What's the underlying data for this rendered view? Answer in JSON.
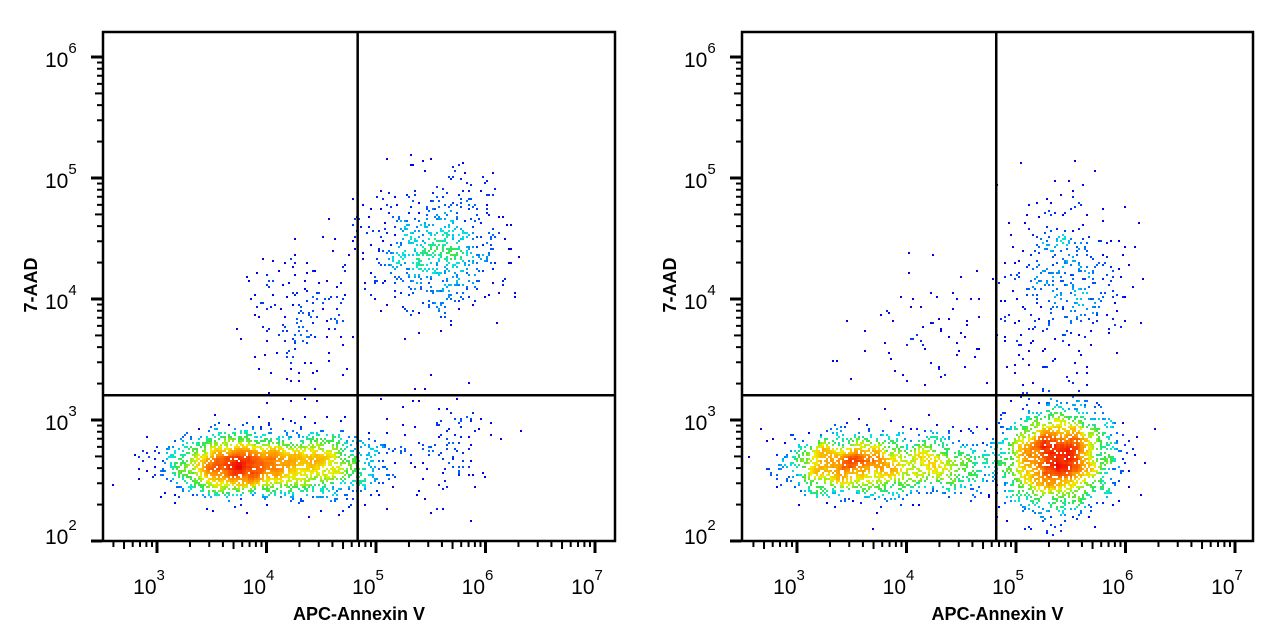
{
  "chart_data": [
    {
      "type": "scatter",
      "subtype": "flow-cytometry-density-dot-plot",
      "title": "",
      "xlabel": "APC-Annexin V",
      "ylabel": "7-AAD",
      "x_scale": "log",
      "y_scale": "log",
      "xlim": [
        316,
        15800000
      ],
      "ylim": [
        100,
        1600000
      ],
      "x_ticks": [
        {
          "base": "10",
          "exp": "3",
          "value": 1000
        },
        {
          "base": "10",
          "exp": "4",
          "value": 10000
        },
        {
          "base": "10",
          "exp": "5",
          "value": 100000
        },
        {
          "base": "10",
          "exp": "6",
          "value": 1000000
        },
        {
          "base": "10",
          "exp": "7",
          "value": 10000000
        }
      ],
      "y_ticks": [
        {
          "base": "10",
          "exp": "2",
          "value": 100
        },
        {
          "base": "10",
          "exp": "3",
          "value": 1000
        },
        {
          "base": "10",
          "exp": "4",
          "value": 10000
        },
        {
          "base": "10",
          "exp": "5",
          "value": 100000
        },
        {
          "base": "10",
          "exp": "6",
          "value": 1000000
        }
      ],
      "quadrant_gates": {
        "x": 68000,
        "y": 1600
      },
      "color_scale": "density (blue-cyan-green-yellow-red)",
      "grid": false,
      "populations": [
        {
          "x_log10_center": 3.76,
          "y_log10_center": 2.63,
          "x_log10_sd": 0.3,
          "y_log10_sd": 0.12,
          "events": 3000,
          "tail_x_log10": 4.5
        },
        {
          "x_log10_center": 5.55,
          "y_log10_center": 4.4,
          "x_log10_sd": 0.3,
          "y_log10_sd": 0.28,
          "events": 650
        },
        {
          "x_log10_center": 4.3,
          "y_log10_center": 3.8,
          "x_log10_sd": 0.25,
          "y_log10_sd": 0.3,
          "events": 160
        },
        {
          "x_log10_center": 5.65,
          "y_log10_center": 2.8,
          "x_log10_sd": 0.25,
          "y_log10_sd": 0.25,
          "events": 110
        }
      ]
    },
    {
      "type": "scatter",
      "subtype": "flow-cytometry-density-dot-plot",
      "title": "",
      "xlabel": "APC-Annexin V",
      "ylabel": "7-AAD",
      "x_scale": "log",
      "y_scale": "log",
      "xlim": [
        316,
        15800000
      ],
      "ylim": [
        100,
        1600000
      ],
      "x_ticks": [
        {
          "base": "10",
          "exp": "3",
          "value": 1000
        },
        {
          "base": "10",
          "exp": "4",
          "value": 10000
        },
        {
          "base": "10",
          "exp": "5",
          "value": 100000
        },
        {
          "base": "10",
          "exp": "6",
          "value": 1000000
        },
        {
          "base": "10",
          "exp": "7",
          "value": 10000000
        }
      ],
      "y_ticks": [
        {
          "base": "10",
          "exp": "2",
          "value": 100
        },
        {
          "base": "10",
          "exp": "3",
          "value": 1000
        },
        {
          "base": "10",
          "exp": "4",
          "value": 10000
        },
        {
          "base": "10",
          "exp": "5",
          "value": 100000
        },
        {
          "base": "10",
          "exp": "6",
          "value": 1000000
        }
      ],
      "quadrant_gates": {
        "x": 66000,
        "y": 1600
      },
      "color_scale": "density (blue-cyan-green-yellow-red)",
      "grid": false,
      "populations": [
        {
          "x_log10_center": 3.5,
          "y_log10_center": 2.63,
          "x_log10_sd": 0.3,
          "y_log10_sd": 0.12,
          "events": 1900,
          "tail_x_log10": 4.3
        },
        {
          "x_log10_center": 5.38,
          "y_log10_center": 2.68,
          "x_log10_sd": 0.25,
          "y_log10_sd": 0.2,
          "events": 2300
        },
        {
          "x_log10_center": 5.45,
          "y_log10_center": 4.15,
          "x_log10_sd": 0.3,
          "y_log10_sd": 0.35,
          "events": 380
        },
        {
          "x_log10_center": 4.2,
          "y_log10_center": 3.7,
          "x_log10_sd": 0.3,
          "y_log10_sd": 0.3,
          "events": 70
        }
      ]
    }
  ]
}
